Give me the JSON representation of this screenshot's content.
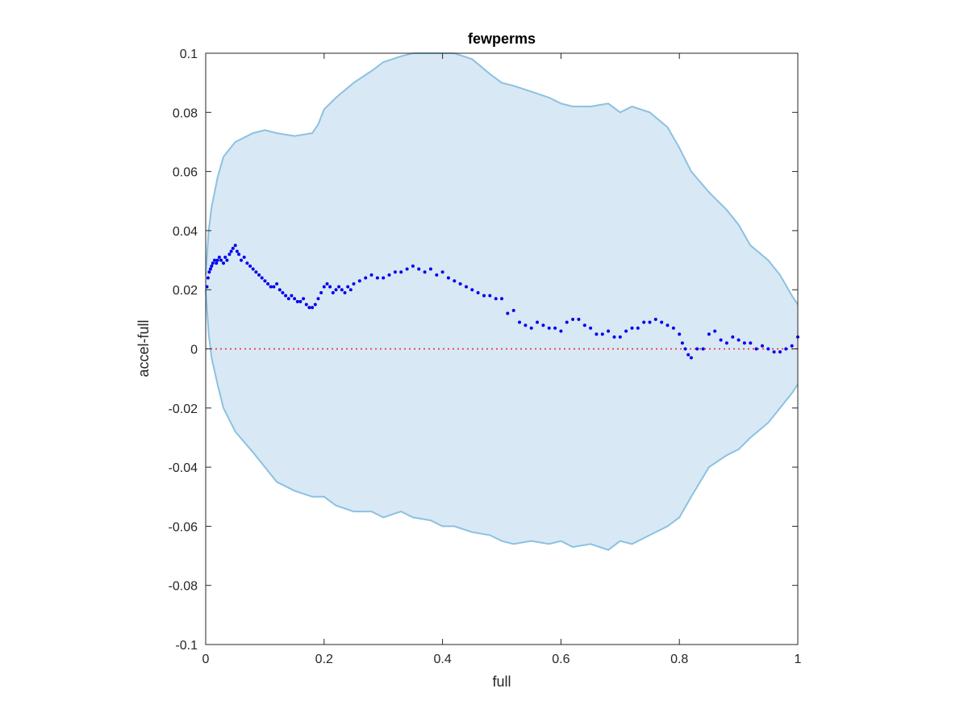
{
  "chart_data": {
    "type": "scatter",
    "title": "fewperms",
    "xlabel": "full",
    "ylabel": "accel-full",
    "xlim": [
      0,
      1
    ],
    "ylim": [
      -0.1,
      0.1
    ],
    "xticks": [
      "0",
      "0.2",
      "0.4",
      "0.6",
      "0.8",
      "1"
    ],
    "yticks": [
      "-0.1",
      "-0.08",
      "-0.06",
      "-0.04",
      "-0.02",
      "0",
      "0.02",
      "0.04",
      "0.06",
      "0.08",
      "0.1"
    ],
    "grid": false,
    "colors": {
      "band_fill": "#d9e8f5",
      "band_edge": "#8cc1e1",
      "points": "#0000ee",
      "reference": "#ee2222"
    },
    "reference_line": {
      "y": 0,
      "style": "dotted"
    },
    "band": {
      "x": [
        0,
        0.005,
        0.01,
        0.02,
        0.03,
        0.05,
        0.08,
        0.1,
        0.12,
        0.15,
        0.18,
        0.19,
        0.2,
        0.22,
        0.25,
        0.28,
        0.3,
        0.33,
        0.35,
        0.38,
        0.4,
        0.42,
        0.45,
        0.48,
        0.5,
        0.52,
        0.55,
        0.58,
        0.6,
        0.62,
        0.65,
        0.68,
        0.7,
        0.72,
        0.75,
        0.78,
        0.8,
        0.82,
        0.85,
        0.88,
        0.9,
        0.92,
        0.95,
        0.97,
        0.99,
        1.0
      ],
      "upper": [
        0.025,
        0.04,
        0.048,
        0.058,
        0.065,
        0.07,
        0.073,
        0.074,
        0.073,
        0.072,
        0.073,
        0.076,
        0.081,
        0.085,
        0.09,
        0.094,
        0.097,
        0.099,
        0.1,
        0.1,
        0.1,
        0.1,
        0.098,
        0.093,
        0.09,
        0.089,
        0.087,
        0.085,
        0.083,
        0.082,
        0.082,
        0.083,
        0.08,
        0.082,
        0.08,
        0.075,
        0.068,
        0.06,
        0.053,
        0.047,
        0.042,
        0.035,
        0.03,
        0.025,
        0.018,
        0.015
      ],
      "lower": [
        0.02,
        0.005,
        -0.003,
        -0.012,
        -0.02,
        -0.028,
        -0.035,
        -0.04,
        -0.045,
        -0.048,
        -0.05,
        -0.05,
        -0.05,
        -0.053,
        -0.055,
        -0.055,
        -0.057,
        -0.055,
        -0.057,
        -0.058,
        -0.06,
        -0.06,
        -0.062,
        -0.063,
        -0.065,
        -0.066,
        -0.065,
        -0.066,
        -0.065,
        -0.067,
        -0.066,
        -0.068,
        -0.065,
        -0.066,
        -0.063,
        -0.06,
        -0.057,
        -0.05,
        -0.04,
        -0.036,
        -0.034,
        -0.03,
        -0.025,
        -0.02,
        -0.015,
        -0.012
      ]
    },
    "series": [
      {
        "x": [
          0.002,
          0.004,
          0.006,
          0.008,
          0.01,
          0.012,
          0.015,
          0.018,
          0.02,
          0.023,
          0.026,
          0.03,
          0.033,
          0.036,
          0.04,
          0.043,
          0.046,
          0.05,
          0.053,
          0.056,
          0.06,
          0.065,
          0.07,
          0.075,
          0.08,
          0.085,
          0.09,
          0.095,
          0.1,
          0.105,
          0.11,
          0.115,
          0.12,
          0.125,
          0.13,
          0.135,
          0.14,
          0.145,
          0.15,
          0.155,
          0.16,
          0.165,
          0.17,
          0.175,
          0.18,
          0.185,
          0.19,
          0.195,
          0.2,
          0.205,
          0.21,
          0.215,
          0.22,
          0.225,
          0.23,
          0.235,
          0.24,
          0.245,
          0.25,
          0.26,
          0.27,
          0.28,
          0.29,
          0.3,
          0.31,
          0.32,
          0.33,
          0.34,
          0.35,
          0.36,
          0.37,
          0.38,
          0.39,
          0.4,
          0.41,
          0.42,
          0.43,
          0.44,
          0.45,
          0.46,
          0.47,
          0.48,
          0.49,
          0.5,
          0.51,
          0.52,
          0.53,
          0.54,
          0.55,
          0.56,
          0.57,
          0.58,
          0.59,
          0.6,
          0.61,
          0.62,
          0.63,
          0.64,
          0.65,
          0.66,
          0.67,
          0.68,
          0.69,
          0.7,
          0.71,
          0.72,
          0.73,
          0.74,
          0.75,
          0.76,
          0.77,
          0.78,
          0.79,
          0.8,
          0.805,
          0.81,
          0.815,
          0.82,
          0.83,
          0.84,
          0.85,
          0.86,
          0.87,
          0.88,
          0.89,
          0.9,
          0.91,
          0.92,
          0.93,
          0.94,
          0.95,
          0.96,
          0.97,
          0.98,
          0.99,
          1.0
        ],
        "y": [
          0.021,
          0.024,
          0.026,
          0.027,
          0.028,
          0.029,
          0.03,
          0.029,
          0.03,
          0.031,
          0.03,
          0.029,
          0.031,
          0.03,
          0.032,
          0.033,
          0.034,
          0.035,
          0.033,
          0.032,
          0.03,
          0.031,
          0.029,
          0.028,
          0.027,
          0.026,
          0.025,
          0.024,
          0.023,
          0.022,
          0.021,
          0.021,
          0.022,
          0.02,
          0.019,
          0.018,
          0.017,
          0.018,
          0.017,
          0.016,
          0.016,
          0.017,
          0.015,
          0.014,
          0.014,
          0.015,
          0.017,
          0.019,
          0.021,
          0.022,
          0.021,
          0.019,
          0.02,
          0.021,
          0.02,
          0.019,
          0.021,
          0.02,
          0.022,
          0.023,
          0.024,
          0.025,
          0.024,
          0.024,
          0.025,
          0.026,
          0.026,
          0.027,
          0.028,
          0.027,
          0.026,
          0.027,
          0.025,
          0.026,
          0.024,
          0.023,
          0.022,
          0.021,
          0.02,
          0.019,
          0.018,
          0.018,
          0.017,
          0.017,
          0.012,
          0.013,
          0.009,
          0.008,
          0.007,
          0.009,
          0.008,
          0.007,
          0.007,
          0.006,
          0.009,
          0.01,
          0.01,
          0.008,
          0.007,
          0.005,
          0.005,
          0.006,
          0.004,
          0.004,
          0.006,
          0.007,
          0.007,
          0.009,
          0.009,
          0.01,
          0.009,
          0.008,
          0.007,
          0.005,
          0.002,
          0.0,
          -0.002,
          -0.003,
          0.0,
          0.0,
          0.005,
          0.006,
          0.003,
          0.002,
          0.004,
          0.003,
          0.002,
          0.002,
          0.0,
          0.001,
          0.0,
          -0.001,
          -0.001,
          0.0,
          0.001,
          0.004
        ]
      }
    ]
  }
}
